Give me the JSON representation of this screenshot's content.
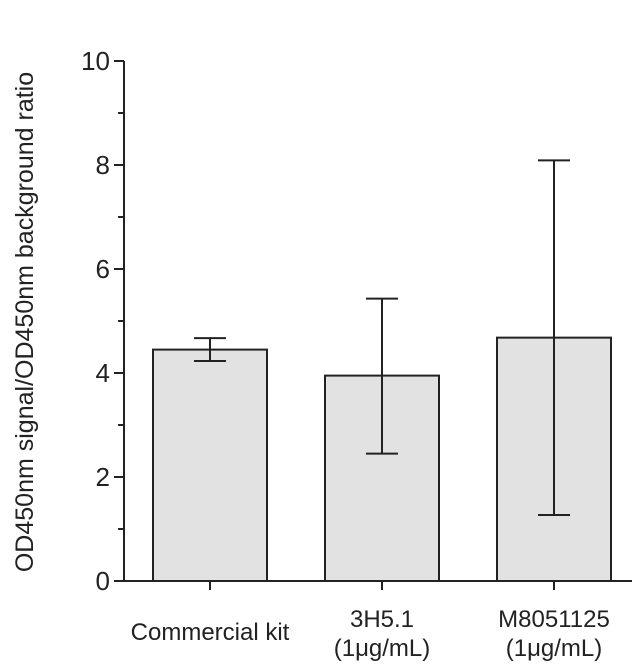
{
  "chart_data": {
    "type": "bar",
    "title": "",
    "xlabel": "",
    "ylabel": "OD450nm signal/OD450nm background ratio",
    "categories": [
      [
        "Commercial kit"
      ],
      [
        "3H5.1",
        "(1μg/mL)"
      ],
      [
        "M8051125",
        "(1μg/mL)"
      ]
    ],
    "values": [
      4.45,
      3.95,
      4.68
    ],
    "error_low": [
      4.23,
      2.45,
      1.27
    ],
    "error_high": [
      4.67,
      5.43,
      8.09
    ],
    "ylim": [
      0,
      10
    ],
    "yticks": [
      0,
      2,
      4,
      6,
      8,
      10
    ],
    "grid": false,
    "bar_color": "#e2e2e2",
    "edge_color": "#222222"
  }
}
